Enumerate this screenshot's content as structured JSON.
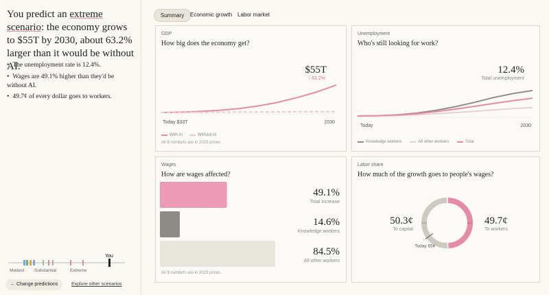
{
  "sidebar": {
    "headline": {
      "prefix": "You predict an ",
      "highlight": "extreme scenario",
      "suffix": ": the economy grows to $55T by 2030, about 63.2% larger than it would be without AI."
    },
    "bullets": [
      "The unemployment rate is 12.4%.",
      "Wages are 49.1% higher than they'd be without AI.",
      "49.7¢ of every dollar goes to workers."
    ],
    "slider": {
      "marker": "You",
      "labels": [
        "Modest",
        "Substantial",
        "Extreme"
      ]
    },
    "actions": [
      "Change predictions",
      "Explore other scenarios"
    ]
  },
  "tabs": [
    "Summary",
    "Economic growth",
    "Labor market"
  ],
  "active_tab": 0,
  "cards": {
    "gdp": {
      "label": "GDP",
      "question": "How big does the economy get?",
      "headline_value": "$55T",
      "headline_change": "↑ 63.2%",
      "x_start": "Today $33T",
      "x_end": "2030",
      "note": "All $ numbers are in 2023 prices",
      "chart": {
        "type": "line",
        "series": [
          {
            "name": "With AI",
            "color": "#e58aa8",
            "dashed": false,
            "values": [
              33,
              33.3,
              33.9,
              34.8,
              36.2,
              38.3,
              41.2,
              45,
              49.5,
              55
            ]
          },
          {
            "name": "Without AI",
            "color": "#e9c9d2",
            "dashed": true,
            "values": [
              33,
              33.1,
              33.2,
              33.3,
              33.4,
              33.45,
              33.5,
              33.6,
              33.65,
              33.7
            ]
          }
        ]
      }
    },
    "unemployment": {
      "label": "Unemployment",
      "question": "Who's still looking for work?",
      "headline_value": "12.4%",
      "headline_caption": "Total unemployment",
      "x_start": "Today",
      "x_end": "2030",
      "chart": {
        "type": "line",
        "series": [
          {
            "name": "Knowledge workers",
            "color": "#8f8a84",
            "dashed": false,
            "values": [
              4,
              4.1,
              4.5,
              5.3,
              6.6,
              8.3,
              10.4,
              12.7,
              14.6,
              16
            ]
          },
          {
            "name": "All other workers",
            "color": "#e9d0d7",
            "dashed": false,
            "values": [
              4,
              4.05,
              4.2,
              4.5,
              5,
              5.6,
              6.2,
              6.9,
              7.5,
              8
            ]
          },
          {
            "name": "Total",
            "color": "#e58aa8",
            "dashed": false,
            "values": [
              4,
              4.1,
              4.4,
              5,
              6,
              7.2,
              8.5,
              9.9,
              11.2,
              12.4
            ]
          }
        ]
      }
    },
    "wages": {
      "label": "Wages",
      "question": "How are wages affected?",
      "note": "All $ numbers are in 2023 prices",
      "chart": {
        "type": "bar",
        "categories": [
          "Total increase",
          "Knowledge workers",
          "All other workers"
        ],
        "values": [
          49.1,
          14.6,
          84.5
        ],
        "value_labels": [
          "49.1%",
          "14.6%",
          "84.5%"
        ],
        "colors": [
          "#ec9ab5",
          "#8e8a84",
          "#e8e5da"
        ]
      }
    },
    "labor_share": {
      "label": "Labor share",
      "question": "How much of the growth goes to people's wages?",
      "chart": {
        "type": "donut",
        "categories": [
          "To capital",
          "To workers"
        ],
        "values": [
          50.3,
          49.7
        ],
        "value_labels": [
          "50.3¢",
          "49.7¢"
        ],
        "colors": [
          "#cfcac1",
          "#e58aa8"
        ],
        "today": {
          "value": 65,
          "label": "Today 65¢"
        }
      }
    }
  }
}
